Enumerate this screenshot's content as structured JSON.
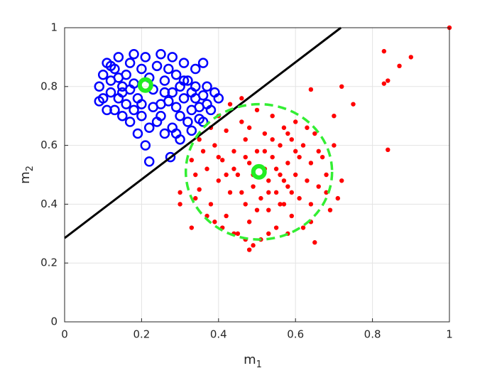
{
  "chart_data": {
    "type": "scatter",
    "xlabel": {
      "text": "m",
      "sub": "1"
    },
    "ylabel": {
      "text": "m",
      "sub": "2"
    },
    "xlim": [
      0,
      1
    ],
    "ylim": [
      0,
      1
    ],
    "xticks": [
      0,
      0.2,
      0.4,
      0.6,
      0.8,
      1
    ],
    "yticks": [
      0,
      0.2,
      0.4,
      0.6,
      0.8,
      1
    ],
    "grid": true,
    "series": [
      {
        "color": "#0000ff",
        "marker": "o",
        "x": [
          0.09,
          0.1,
          0.11,
          0.12,
          0.13,
          0.14,
          0.15,
          0.16,
          0.17,
          0.18,
          0.19,
          0.2,
          0.21,
          0.22,
          0.23,
          0.24,
          0.25,
          0.26,
          0.27,
          0.28,
          0.29,
          0.3,
          0.31,
          0.32,
          0.33,
          0.34,
          0.35,
          0.36,
          0.37,
          0.36,
          0.33,
          0.3,
          0.28,
          0.26,
          0.24,
          0.22,
          0.2,
          0.18,
          0.16,
          0.14,
          0.12,
          0.1,
          0.09,
          0.11,
          0.13,
          0.15,
          0.17,
          0.19,
          0.21,
          0.22,
          0.275,
          0.29,
          0.32,
          0.35,
          0.37,
          0.39,
          0.4,
          0.38,
          0.34,
          0.31,
          0.28,
          0.25,
          0.18,
          0.15,
          0.17,
          0.23,
          0.27,
          0.29,
          0.25,
          0.2,
          0.14,
          0.12,
          0.26,
          0.31,
          0.34,
          0.36,
          0.33,
          0.3
        ],
        "y": [
          0.8,
          0.84,
          0.88,
          0.82,
          0.86,
          0.9,
          0.78,
          0.84,
          0.88,
          0.81,
          0.76,
          0.86,
          0.9,
          0.83,
          0.79,
          0.87,
          0.74,
          0.82,
          0.86,
          0.78,
          0.84,
          0.8,
          0.76,
          0.82,
          0.78,
          0.8,
          0.73,
          0.77,
          0.8,
          0.88,
          0.72,
          0.7,
          0.66,
          0.64,
          0.68,
          0.66,
          0.7,
          0.72,
          0.74,
          0.76,
          0.78,
          0.76,
          0.75,
          0.72,
          0.72,
          0.7,
          0.68,
          0.64,
          0.6,
          0.545,
          0.56,
          0.64,
          0.68,
          0.69,
          0.74,
          0.78,
          0.76,
          0.72,
          0.86,
          0.88,
          0.9,
          0.91,
          0.91,
          0.8,
          0.79,
          0.73,
          0.75,
          0.73,
          0.7,
          0.74,
          0.83,
          0.87,
          0.78,
          0.82,
          0.76,
          0.68,
          0.65,
          0.62
        ]
      },
      {
        "color": "#ff0000",
        "marker": ".",
        "x": [
          0.35,
          0.37,
          0.38,
          0.39,
          0.4,
          0.41,
          0.42,
          0.42,
          0.43,
          0.44,
          0.45,
          0.45,
          0.46,
          0.47,
          0.47,
          0.48,
          0.48,
          0.49,
          0.5,
          0.5,
          0.51,
          0.51,
          0.52,
          0.52,
          0.53,
          0.53,
          0.54,
          0.54,
          0.55,
          0.55,
          0.56,
          0.56,
          0.57,
          0.57,
          0.58,
          0.58,
          0.59,
          0.59,
          0.6,
          0.6,
          0.61,
          0.61,
          0.62,
          0.62,
          0.63,
          0.64,
          0.64,
          0.65,
          0.66,
          0.67,
          0.68,
          0.69,
          0.7,
          0.36,
          0.38,
          0.4,
          0.43,
          0.46,
          0.44,
          0.49,
          0.41,
          0.39,
          0.37,
          0.34,
          0.34,
          0.33,
          0.35,
          0.44,
          0.46,
          0.47,
          0.49,
          0.5,
          0.52,
          0.53,
          0.54,
          0.55,
          0.56,
          0.57,
          0.58,
          0.59,
          0.6,
          0.42,
          0.4,
          0.48,
          0.63,
          0.66,
          0.68,
          0.64,
          0.58,
          0.53,
          0.47,
          1,
          0.83,
          0.9,
          0.87,
          0.83,
          0.84,
          0.84,
          0.72,
          0.75,
          0.7,
          0.64,
          0.33,
          0.3,
          0.48,
          0.65,
          0.72,
          0.71,
          0.3
        ],
        "y": [
          0.45,
          0.52,
          0.4,
          0.6,
          0.48,
          0.55,
          0.36,
          0.65,
          0.44,
          0.58,
          0.5,
          0.3,
          0.68,
          0.4,
          0.62,
          0.54,
          0.34,
          0.46,
          0.72,
          0.58,
          0.42,
          0.28,
          0.52,
          0.64,
          0.38,
          0.48,
          0.7,
          0.56,
          0.44,
          0.32,
          0.6,
          0.5,
          0.66,
          0.4,
          0.54,
          0.46,
          0.36,
          0.62,
          0.5,
          0.68,
          0.42,
          0.56,
          0.32,
          0.6,
          0.48,
          0.54,
          0.4,
          0.64,
          0.46,
          0.56,
          0.5,
          0.38,
          0.6,
          0.58,
          0.66,
          0.7,
          0.74,
          0.76,
          0.3,
          0.26,
          0.32,
          0.34,
          0.36,
          0.42,
          0.5,
          0.55,
          0.62,
          0.52,
          0.44,
          0.56,
          0.5,
          0.38,
          0.58,
          0.44,
          0.62,
          0.52,
          0.4,
          0.48,
          0.64,
          0.44,
          0.58,
          0.5,
          0.56,
          0.66,
          0.66,
          0.58,
          0.44,
          0.34,
          0.3,
          0.3,
          0.28,
          1,
          0.92,
          0.9,
          0.87,
          0.81,
          0.82,
          0.585,
          0.8,
          0.74,
          0.7,
          0.79,
          0.32,
          0.4,
          0.245,
          0.27,
          0.48,
          0.42,
          0.44
        ]
      }
    ],
    "lines": [
      {
        "color": "#000000",
        "x": [
          0,
          0.718
        ],
        "y": [
          0.285,
          1
        ]
      }
    ],
    "ellipses": [
      {
        "color": "#33ee33",
        "dashed": true,
        "cx": 0.505,
        "cy": 0.51,
        "rx": 0.19,
        "ry": 0.23
      }
    ],
    "centroids": {
      "color": "#22ee22",
      "x": [
        0.21,
        0.505
      ],
      "y": [
        0.805,
        0.51
      ]
    }
  }
}
